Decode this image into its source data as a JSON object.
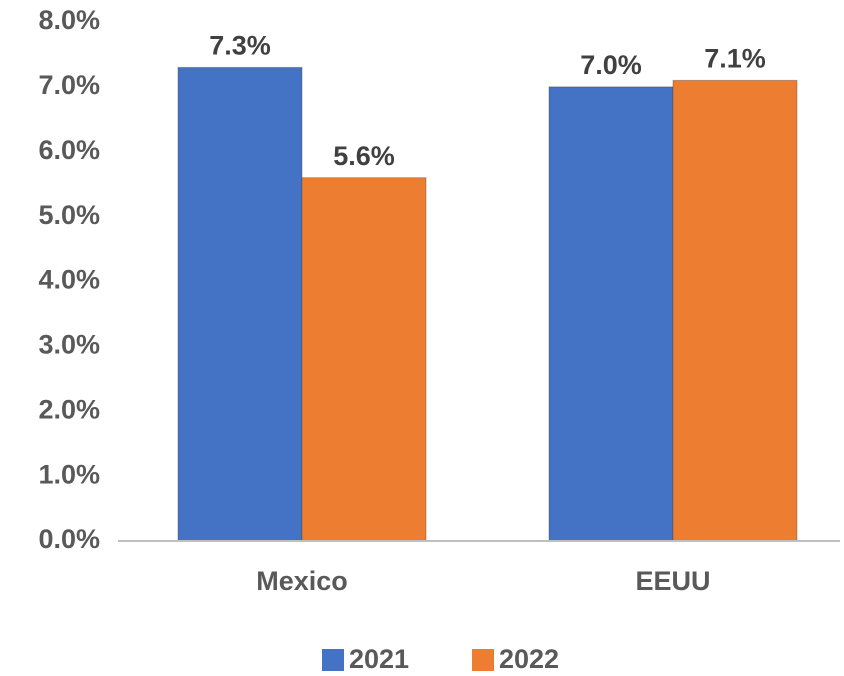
{
  "chart_data": {
    "type": "bar",
    "categories": [
      "Mexico",
      "EEUU"
    ],
    "series": [
      {
        "name": "2021",
        "color": "#4472c4",
        "values": [
          7.3,
          7.0
        ],
        "value_labels": [
          "7.3%",
          "7.0%"
        ]
      },
      {
        "name": "2022",
        "color": "#ed7d31",
        "values": [
          5.6,
          7.1
        ],
        "value_labels": [
          "5.6%",
          "7.1%"
        ]
      }
    ],
    "ylim": [
      0,
      8
    ],
    "yticks": [
      {
        "value": 0,
        "label": "0.0%"
      },
      {
        "value": 1,
        "label": "1.0%"
      },
      {
        "value": 2,
        "label": "2.0%"
      },
      {
        "value": 3,
        "label": "3.0%"
      },
      {
        "value": 4,
        "label": "4.0%"
      },
      {
        "value": 5,
        "label": "5.0%"
      },
      {
        "value": 6,
        "label": "6.0%"
      },
      {
        "value": 7,
        "label": "7.0%"
      },
      {
        "value": 8,
        "label": "8.0%"
      }
    ],
    "grid": false,
    "legend": "bottom"
  }
}
